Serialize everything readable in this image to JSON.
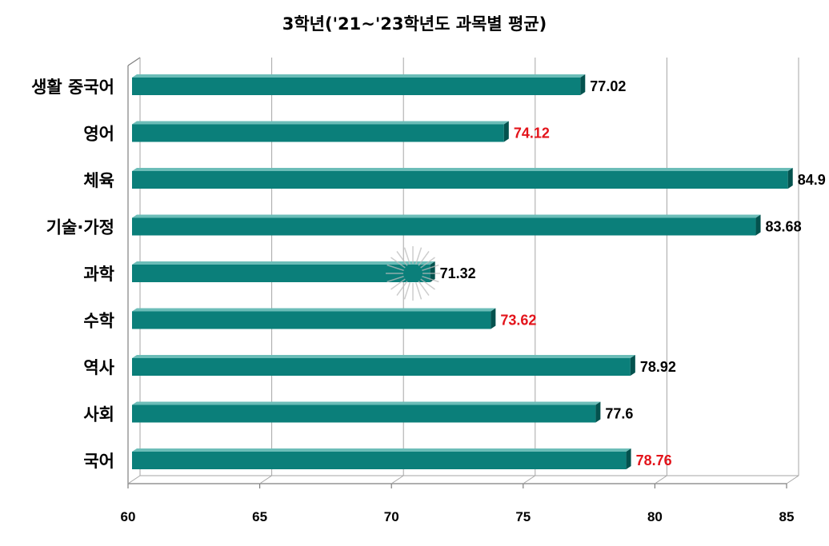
{
  "chart_data": {
    "type": "bar",
    "orientation": "horizontal",
    "title": "3학년('21~'23학년도 과목별 평균)",
    "categories": [
      "생활 중국어",
      "영어",
      "체육",
      "기술·가정",
      "과학",
      "수학",
      "역사",
      "사회",
      "국어"
    ],
    "values": [
      77.02,
      74.12,
      84.9,
      83.68,
      71.32,
      73.62,
      78.92,
      77.6,
      78.76
    ],
    "value_labels": [
      "77.02",
      "74.12",
      "84.9",
      "83.68",
      "71.32",
      "73.62",
      "78.92",
      "77.6",
      "78.76"
    ],
    "label_colors": [
      "#000000",
      "#e3141b",
      "#000000",
      "#000000",
      "#000000",
      "#e3141b",
      "#000000",
      "#000000",
      "#e3141b"
    ],
    "xlim": [
      60,
      85
    ],
    "x_ticks": [
      60,
      65,
      70,
      75,
      80,
      85
    ],
    "grid": true,
    "legend": false,
    "colors": {
      "bar_front": "#0b7f7a",
      "bar_top": "#6cbdb8",
      "bar_side": "#04524e",
      "gridline": "#a6a6a6",
      "axis": "#7f7f7f"
    }
  }
}
